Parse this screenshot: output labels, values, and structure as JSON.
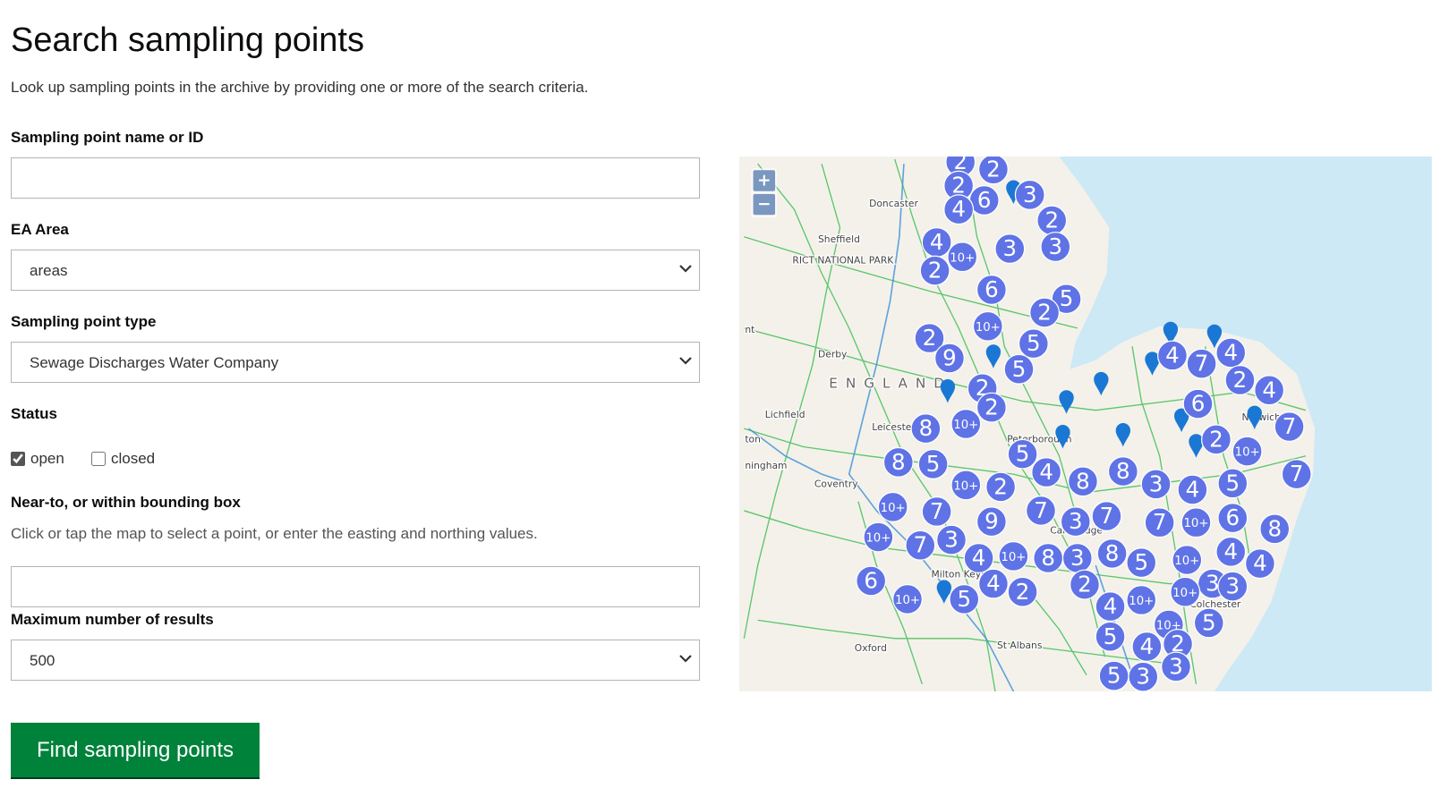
{
  "page": {
    "title": "Search sampling points",
    "intro": "Look up sampling points in the archive by providing one or more of the search criteria."
  },
  "form": {
    "name_label": "Sampling point name or ID",
    "area_label": "EA Area",
    "area_value": "areas",
    "type_label": "Sampling point type",
    "type_value": "Sewage Discharges Water Company",
    "status_label": "Status",
    "status_open": "open",
    "status_open_checked": true,
    "status_closed": "closed",
    "status_closed_checked": false,
    "near_label": "Near-to, or within bounding box",
    "near_help": "Click or tap the map to select a point, or enter the easting and northing values.",
    "max_label": "Maximum number of results",
    "max_value": "500",
    "submit": "Find sampling points"
  },
  "map": {
    "zoom_in": "+",
    "zoom_out": "−",
    "places": [
      "Doncaster",
      "Sheffield",
      "RICT NATIONAL PARK",
      "Derby",
      "E N G L A N D",
      "Lichfield",
      "Leicester",
      "Peterborough",
      "Coventry",
      "Milton Keynes",
      "Oxford",
      "St Albans",
      "Norwich",
      "Colchester",
      "Cambridge",
      "nt",
      "ton",
      "ningham"
    ],
    "clusters": [
      "2",
      "2",
      "2",
      "6",
      "3",
      "4",
      "2",
      "4",
      "10+",
      "3",
      "3",
      "2",
      "6",
      "5",
      "2",
      "10+",
      "2",
      "5",
      "9",
      "5",
      "4",
      "4",
      "7",
      "2",
      "4",
      "2",
      "2",
      "6",
      "8",
      "10+",
      "7",
      "2",
      "10+",
      "5",
      "8",
      "5",
      "4",
      "8",
      "8",
      "3",
      "4",
      "5",
      "7",
      "10+",
      "2",
      "10+",
      "7",
      "7",
      "7",
      "3",
      "7",
      "10+",
      "6",
      "9",
      "8",
      "10+",
      "7",
      "3",
      "4",
      "10+",
      "8",
      "3",
      "8",
      "5",
      "10+",
      "4",
      "4",
      "6",
      "4",
      "2",
      "2",
      "3",
      "3",
      "10+",
      "10+",
      "5",
      "4",
      "10+",
      "10+",
      "5",
      "5",
      "4",
      "2",
      "3",
      "5",
      "3"
    ]
  }
}
